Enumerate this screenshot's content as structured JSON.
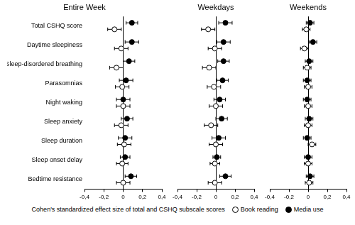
{
  "chart_data": {
    "type": "scatter",
    "categories": [
      "Total CSHQ score",
      "Daytime sleepiness",
      "Sleep-disordered breathing",
      "Parasomnias",
      "Night waking",
      "Sleep anxiety",
      "Sleep duration",
      "Sleep onset delay",
      "Bedtime resistance"
    ],
    "xlabel": "Cohen's standardized effect size of total and CSHQ subscale scores",
    "xlim": [
      -0.4,
      0.4
    ],
    "xticks": [
      {
        "value": -0.4,
        "label": "-0,4"
      },
      {
        "value": -0.2,
        "label": "-0,2"
      },
      0,
      {
        "value": 0.2,
        "label": "0,2"
      },
      {
        "value": 0.4,
        "label": "0,4"
      }
    ],
    "grid": false,
    "legend": "bottom",
    "series": [
      {
        "name": "Book reading",
        "color": "#000000",
        "marker": "hollow"
      },
      {
        "name": "Media use",
        "color": "#000000",
        "marker": "solid"
      }
    ],
    "panels": [
      {
        "title": "Entire Week",
        "series": [
          {
            "values": [
              -0.09,
              -0.02,
              -0.07,
              -0.01,
              0.0,
              -0.02,
              0.01,
              -0.01,
              0.0
            ],
            "ci_low": [
              -0.16,
              -0.09,
              -0.14,
              -0.08,
              -0.07,
              -0.09,
              -0.06,
              -0.07,
              -0.07
            ],
            "ci_high": [
              -0.02,
              0.05,
              0.0,
              0.06,
              0.07,
              0.05,
              0.08,
              0.05,
              0.07
            ]
          },
          {
            "values": [
              0.09,
              0.09,
              0.06,
              0.03,
              0.0,
              0.04,
              0.02,
              0.02,
              0.08
            ],
            "ci_low": [
              0.03,
              0.02,
              0.0,
              -0.04,
              -0.07,
              -0.02,
              -0.05,
              -0.03,
              0.02
            ],
            "ci_high": [
              0.15,
              0.16,
              0.12,
              0.1,
              0.07,
              0.1,
              0.09,
              0.07,
              0.14
            ]
          }
        ]
      },
      {
        "title": "Weekdays",
        "series": [
          {
            "values": [
              -0.08,
              -0.01,
              -0.07,
              -0.02,
              0.0,
              -0.05,
              0.0,
              -0.01,
              -0.01
            ],
            "ci_low": [
              -0.15,
              -0.08,
              -0.14,
              -0.09,
              -0.07,
              -0.12,
              -0.07,
              -0.06,
              -0.08
            ],
            "ci_high": [
              -0.01,
              0.06,
              0.0,
              0.05,
              0.07,
              0.02,
              0.07,
              0.04,
              0.06
            ]
          },
          {
            "values": [
              0.1,
              0.08,
              0.08,
              0.07,
              0.04,
              0.06,
              0.03,
              0.01,
              0.1
            ],
            "ci_low": [
              0.03,
              0.01,
              0.02,
              0.01,
              -0.02,
              0.0,
              -0.04,
              -0.03,
              0.04
            ],
            "ci_high": [
              0.17,
              0.15,
              0.14,
              0.13,
              0.1,
              0.12,
              0.1,
              0.05,
              0.16
            ]
          }
        ]
      },
      {
        "title": "Weekends",
        "series": [
          {
            "values": [
              -0.02,
              -0.04,
              -0.01,
              0.0,
              0.0,
              0.0,
              0.04,
              0.0,
              0.01
            ],
            "ci_low": [
              -0.06,
              -0.08,
              -0.05,
              -0.04,
              -0.04,
              -0.04,
              0.0,
              -0.04,
              -0.03
            ],
            "ci_high": [
              0.02,
              0.0,
              0.03,
              0.04,
              0.04,
              0.04,
              0.08,
              0.04,
              0.05
            ]
          },
          {
            "values": [
              0.02,
              0.05,
              0.01,
              -0.01,
              -0.01,
              0.01,
              -0.01,
              0.0,
              0.02
            ],
            "ci_low": [
              -0.02,
              0.01,
              -0.03,
              -0.05,
              -0.05,
              -0.03,
              -0.05,
              -0.04,
              -0.02
            ],
            "ci_high": [
              0.06,
              0.09,
              0.05,
              0.03,
              0.03,
              0.05,
              0.03,
              0.04,
              0.06
            ]
          }
        ]
      }
    ]
  }
}
